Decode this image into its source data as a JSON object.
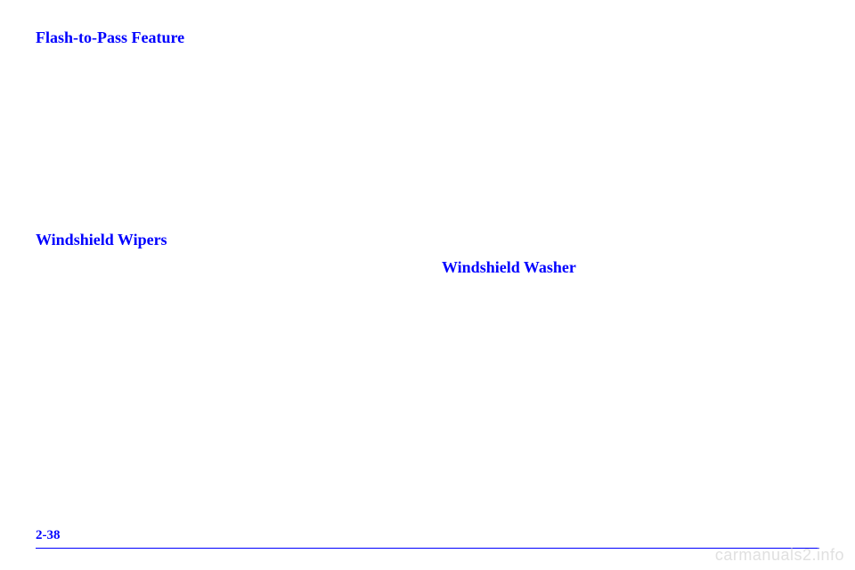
{
  "left": {
    "heading1": "Flash-to-Pass Feature",
    "heading2": "Windshield Wipers"
  },
  "right": {
    "heading1": "Windshield Washer"
  },
  "pageNumber": "2-38",
  "watermark": "carmanuals2.info",
  "colors": {
    "link": "#0000ff",
    "background": "#ffffff",
    "watermark": "#e0e0e0"
  }
}
